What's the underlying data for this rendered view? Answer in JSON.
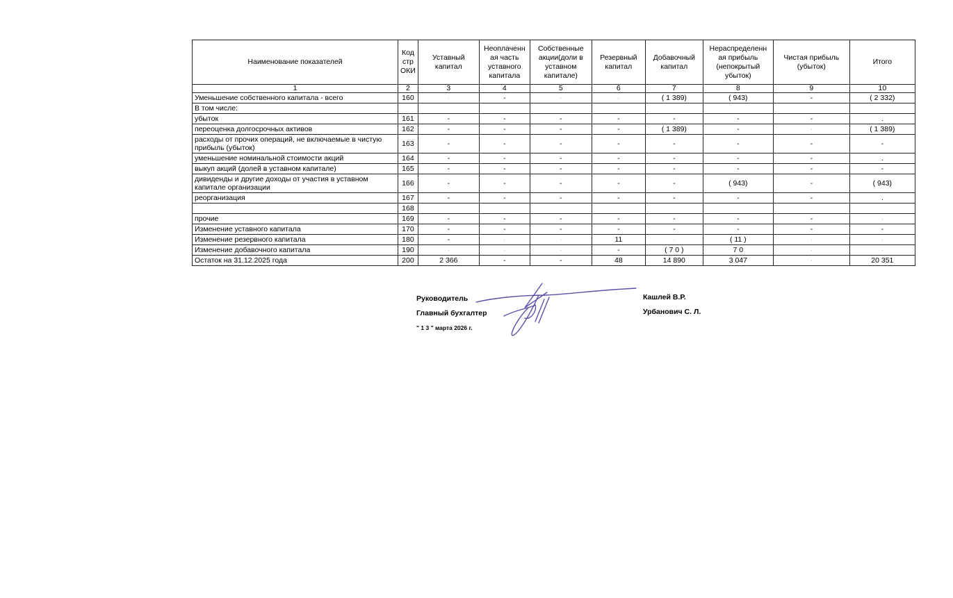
{
  "table": {
    "headers": [
      "Наименование показателей",
      "Код стр ОКИ",
      "Уставный капитал",
      "Неоплаченн ая часть уставного капитала",
      "Собственные акции(доли в уставном капитале)",
      "Резервный капитал",
      "Добавочный капитал",
      "Нераспределенн ая прибыль (непокрытый убыток)",
      "Чистая прибыль (убыток)",
      "Итого"
    ],
    "column_numbers": [
      "1",
      "2",
      "3",
      "4",
      "5",
      "6",
      "7",
      "8",
      "9",
      "10"
    ],
    "rows": [
      {
        "name": "Уменьшение собственного капитала - всего",
        "code": "160",
        "values": [
          "·",
          "-",
          "·",
          "·",
          "( 1 389)",
          "( 943)",
          "-",
          "( 2 332)"
        ]
      },
      {
        "name": "В том числе:",
        "code": "",
        "values": [
          "",
          "",
          "",
          "",
          "",
          "",
          "",
          ""
        ]
      },
      {
        "name": "убыток",
        "code": "161",
        "values": [
          "-",
          "-",
          "-",
          "-",
          "-",
          "-",
          "-",
          "."
        ]
      },
      {
        "name": "переоценка долгосрочных активов",
        "code": "162",
        "values": [
          "-",
          "-",
          "-",
          "-",
          "( 1 389)",
          "-",
          "·",
          "( 1 389)"
        ]
      },
      {
        "name": "расходы от прочих операций, не включаемые в чистую прибыль (убыток)",
        "code": "163",
        "values": [
          "-",
          "-",
          "-",
          "-",
          "-",
          "-",
          "-",
          "-"
        ],
        "tall": true
      },
      {
        "name": "уменьшение номинальной стоимости акций",
        "code": "164",
        "values": [
          "-",
          "-",
          "-",
          "-",
          "-",
          "-",
          "-",
          "."
        ]
      },
      {
        "name": "выкуп акций (долей в уставном капитале)",
        "code": "165",
        "values": [
          "-",
          "-",
          "-",
          "-",
          "-",
          "-",
          "-",
          "-"
        ]
      },
      {
        "name": "дивиденды и другие доходы от участия в уставном капитале организации",
        "code": "166",
        "values": [
          "-",
          "-",
          "-",
          "-",
          "-",
          "( 943)",
          "-",
          "( 943)"
        ],
        "tall": true
      },
      {
        "name": "реорганизация",
        "code": "167",
        "values": [
          "-",
          "-",
          "-",
          "-",
          "-",
          "-",
          "-",
          "."
        ]
      },
      {
        "name": "",
        "code": "168",
        "values": [
          "",
          "",
          "",
          "",
          "",
          "",
          "",
          ""
        ]
      },
      {
        "name": "прочие",
        "code": "169",
        "values": [
          "-",
          "-",
          "-",
          "-",
          "-",
          "-",
          "-",
          "·"
        ]
      },
      {
        "name": "Изменение уставного капитала",
        "code": "170",
        "values": [
          "-",
          "-",
          "-",
          "-",
          "-",
          "-",
          "-",
          "-"
        ]
      },
      {
        "name": "Изменение резервного капитала",
        "code": "180",
        "values": [
          "-",
          "·",
          "·",
          "11",
          "·",
          "( 11 )",
          "·",
          "·"
        ]
      },
      {
        "name": "Изменение добавочного капитала",
        "code": "190",
        "values": [
          "·",
          "·",
          "·",
          "-",
          "( 7 0 )",
          "7 0",
          "·",
          "·"
        ]
      },
      {
        "name": "Остаток на 31.12.2025 года",
        "code": "200",
        "values": [
          "2 366",
          "-",
          "-",
          "48",
          "14 890",
          "3 047",
          "·",
          "20 351"
        ]
      }
    ]
  },
  "signatures": {
    "director_label": "Руководитель",
    "director_name": "Кашлей В.Р.",
    "accountant_label": "Главный бухгалтер",
    "accountant_name": "Урбанович С. Л.",
    "date": "\" 1 3 \"  марта  2026 г.",
    "ink_color": "#5a4fa8"
  }
}
